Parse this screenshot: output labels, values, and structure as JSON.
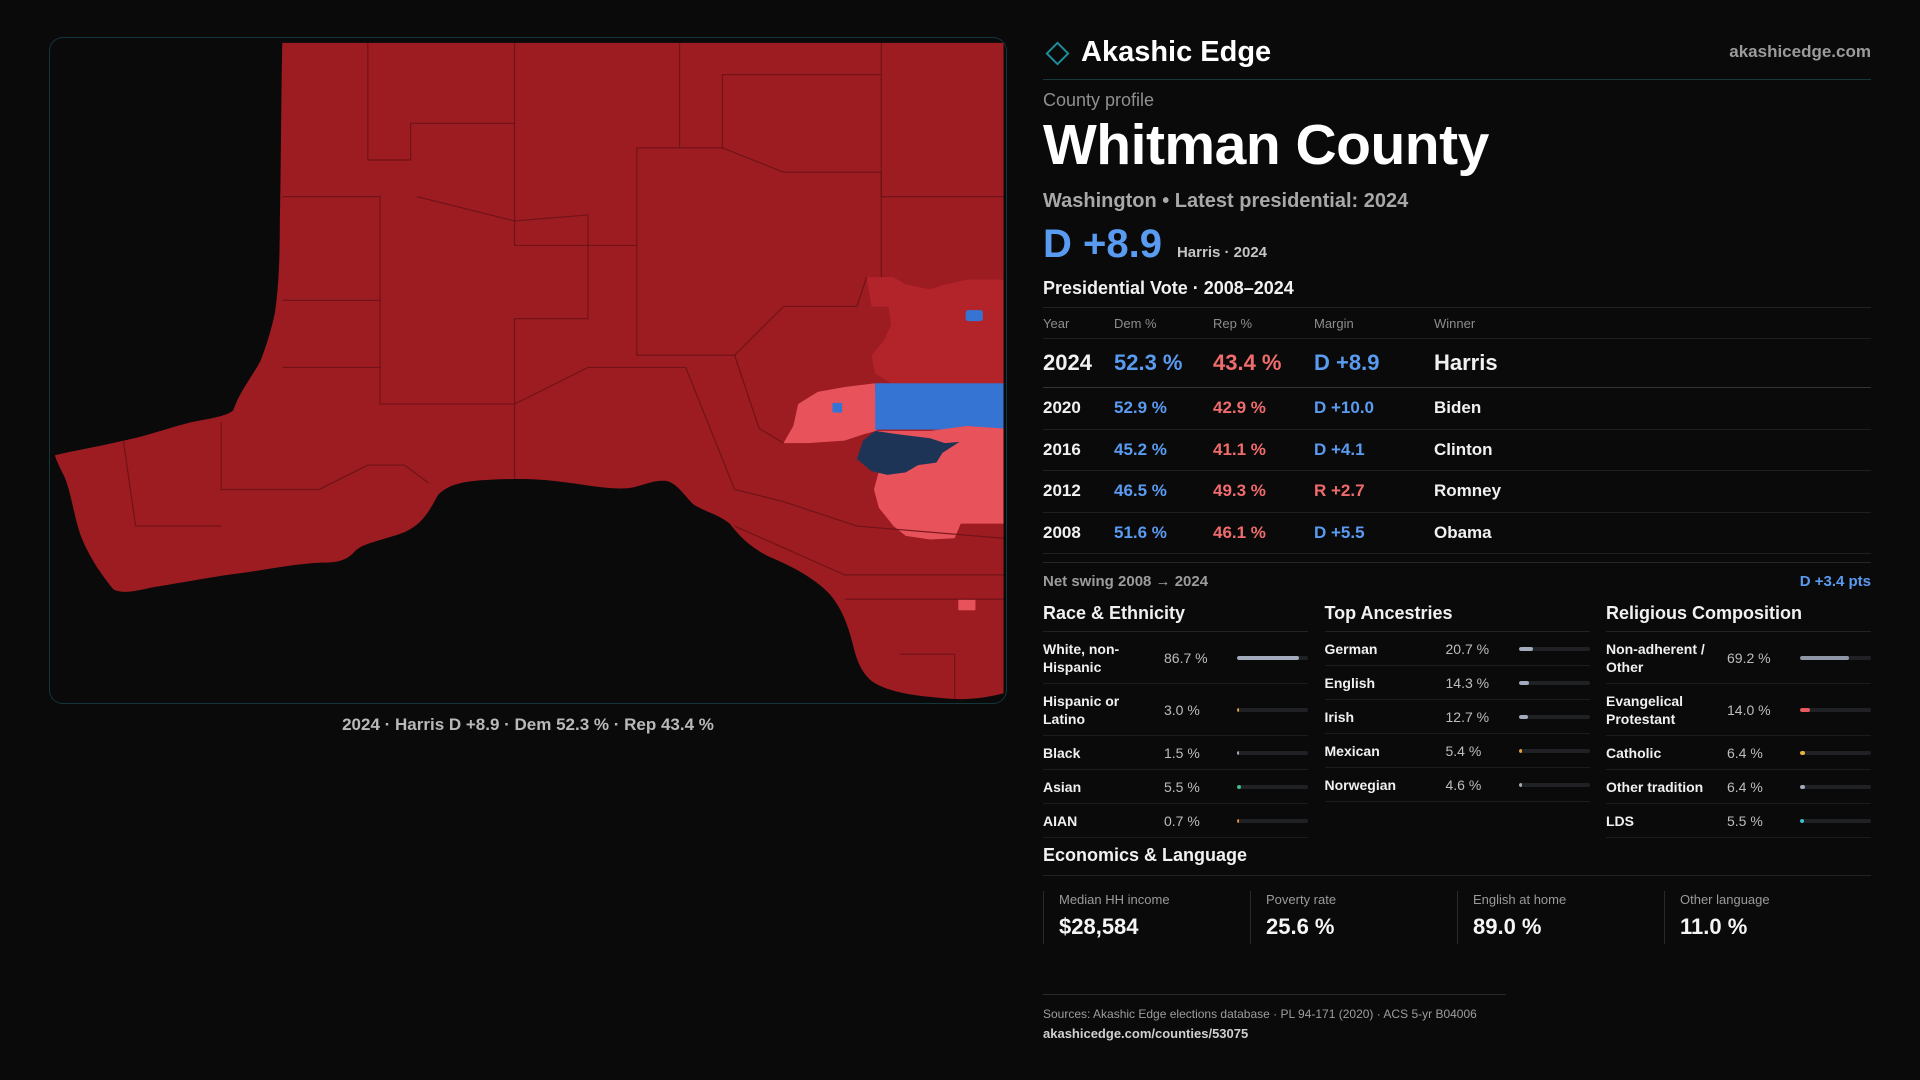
{
  "colors": {
    "dem": "#5a9bf2",
    "rep": "#f06c6c",
    "accent": "#1e8d98",
    "map_strong_rep": "#9c1c21",
    "map_lean_rep": "#b3232a",
    "map_tilt_rep": "#e8525a",
    "map_lean_dem": "#3674d4",
    "map_strong_dem": "#1d3457"
  },
  "brand": {
    "name": "Akashic Edge",
    "site": "akashicedge.com",
    "logo_icon": "diamond-icon"
  },
  "map": {
    "caption": "2024 · Harris D +8.9 · Dem 52.3 % · Rep 43.4 %"
  },
  "profile": {
    "eyebrow": "County profile",
    "title": "Whitman County",
    "subtitle": "Washington • Latest presidential: 2024",
    "headline_margin": "D +8.9",
    "headline_note": "Harris · 2024"
  },
  "vote": {
    "title": "Presidential Vote · 2008–2024",
    "headers": [
      "Year",
      "Dem %",
      "Rep %",
      "Margin",
      "Winner"
    ],
    "rows": [
      {
        "year": "2024",
        "dem": "52.3 %",
        "rep": "43.4 %",
        "margin": "D +8.9",
        "winner": "Harris"
      },
      {
        "year": "2020",
        "dem": "52.9 %",
        "rep": "42.9 %",
        "margin": "D +10.0",
        "winner": "Biden"
      },
      {
        "year": "2016",
        "dem": "45.2 %",
        "rep": "41.1 %",
        "margin": "D +4.1",
        "winner": "Clinton"
      },
      {
        "year": "2012",
        "dem": "46.5 %",
        "rep": "49.3 %",
        "margin": "R +2.7",
        "winner": "Romney"
      },
      {
        "year": "2008",
        "dem": "51.6 %",
        "rep": "46.1 %",
        "margin": "D +5.5",
        "winner": "Obama"
      }
    ]
  },
  "swing": {
    "label": "Net swing 2008 → 2024",
    "value": "D +3.4 pts"
  },
  "race": {
    "title": "Race & Ethnicity",
    "items": [
      {
        "label": "White, non-Hispanic",
        "value": "86.7 %",
        "pct": 86.7,
        "color": "#a3abbd"
      },
      {
        "label": "Hispanic or Latino",
        "value": "3.0 %",
        "pct": 3.0,
        "color": "#e0a23a"
      },
      {
        "label": "Black",
        "value": "1.5 %",
        "pct": 1.5,
        "color": "#a3abbd"
      },
      {
        "label": "Asian",
        "value": "5.5 %",
        "pct": 5.5,
        "color": "#3cc08a"
      },
      {
        "label": "AIAN",
        "value": "0.7 %",
        "pct": 0.7,
        "color": "#e08a3a"
      }
    ]
  },
  "ancestry": {
    "title": "Top Ancestries",
    "items": [
      {
        "label": "German",
        "value": "20.7 %",
        "pct": 20.7,
        "color": "#a3abbd"
      },
      {
        "label": "English",
        "value": "14.3 %",
        "pct": 14.3,
        "color": "#a3abbd"
      },
      {
        "label": "Irish",
        "value": "12.7 %",
        "pct": 12.7,
        "color": "#a3abbd"
      },
      {
        "label": "Mexican",
        "value": "5.4 %",
        "pct": 5.4,
        "color": "#e0a23a"
      },
      {
        "label": "Norwegian",
        "value": "4.6 %",
        "pct": 4.6,
        "color": "#a3abbd"
      }
    ]
  },
  "religion": {
    "title": "Religious Composition",
    "items": [
      {
        "label": "Non-adherent / Other",
        "value": "69.2 %",
        "pct": 69.2,
        "color": "#8f96a6"
      },
      {
        "label": "Evangelical Protestant",
        "value": "14.0 %",
        "pct": 14.0,
        "color": "#e8595f"
      },
      {
        "label": "Catholic",
        "value": "6.4 %",
        "pct": 6.4,
        "color": "#e8b23a"
      },
      {
        "label": "Other tradition",
        "value": "6.4 %",
        "pct": 6.4,
        "color": "#a3abbd"
      },
      {
        "label": "LDS",
        "value": "5.5 %",
        "pct": 5.5,
        "color": "#3cc0d0"
      }
    ]
  },
  "economics": {
    "title": "Economics & Language",
    "stats": [
      {
        "label": "Median HH income",
        "value": "$28,584"
      },
      {
        "label": "Poverty rate",
        "value": "25.6 %"
      },
      {
        "label": "English at home",
        "value": "89.0 %"
      },
      {
        "label": "Other language",
        "value": "11.0 %"
      }
    ]
  },
  "footer": {
    "sources": "Sources: Akashic Edge elections database · PL 94-171 (2020) · ACS 5-yr B04006",
    "url": "akashicedge.com/counties/53075"
  }
}
